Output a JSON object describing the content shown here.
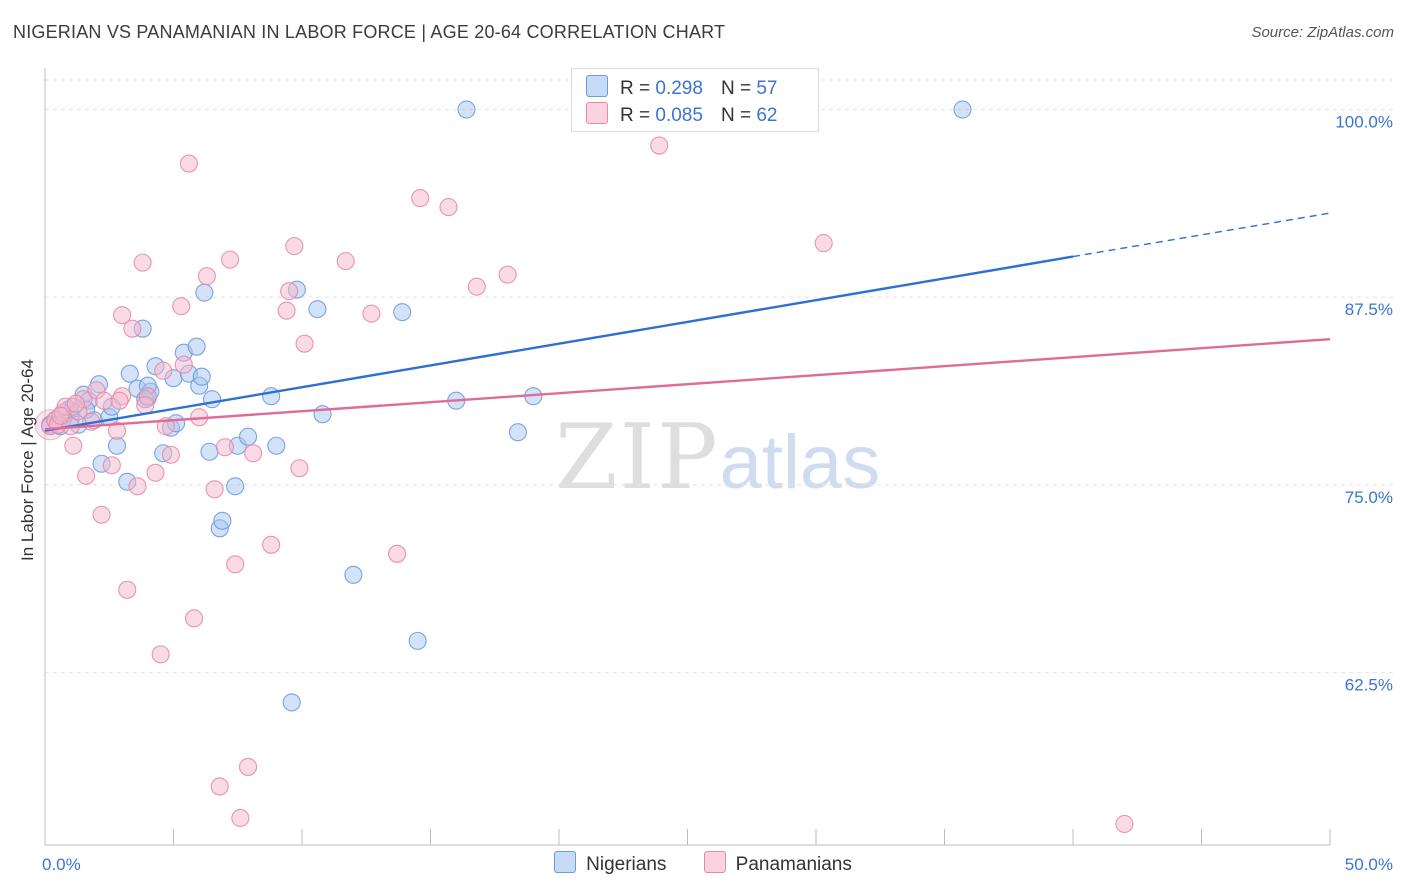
{
  "header": {
    "title": "NIGERIAN VS PANAMANIAN IN LABOR FORCE | AGE 20-64 CORRELATION CHART",
    "source": "Source: ZipAtlas.com"
  },
  "watermark": {
    "zip": "ZIP",
    "atlas": "atlas"
  },
  "stats": [
    {
      "r_label": "R =",
      "r_value": "0.298",
      "n_label": "N =",
      "n_value": "57",
      "color": "#a8c6f0"
    },
    {
      "r_label": "R =",
      "r_value": "0.085",
      "n_label": "N =",
      "n_value": "62",
      "color": "#f6b7cb"
    }
  ],
  "legend": [
    {
      "label": "Nigerians",
      "color": "#a8c6f0"
    },
    {
      "label": "Panamanians",
      "color": "#f6b7cb"
    }
  ],
  "colors": {
    "nigerian_fill": "#a8c6f0",
    "nigerian_stroke": "#6d9be0",
    "nigerian_line": "#2e6fd0",
    "panamanian_fill": "#f6b7cb",
    "panamanian_stroke": "#e58aab",
    "panamanian_line": "#e06b98",
    "tick_label": "#3a74d4",
    "grid": "#e2e2e2",
    "axis": "#bdbdbd"
  },
  "chart_data": {
    "type": "scatter",
    "title": "NIGERIAN VS PANAMANIAN IN LABOR FORCE | AGE 20-64 CORRELATION CHART",
    "xlabel": "",
    "ylabel": "In Labor Force | Age 20-64",
    "xlim": [
      0,
      50
    ],
    "ylim": [
      51,
      102.5
    ],
    "x_tick_labels": [
      "0.0%",
      "50.0%"
    ],
    "y_ticks": [
      62.5,
      75.0,
      87.5,
      100.0
    ],
    "y_tick_labels": [
      "62.5%",
      "75.0%",
      "87.5%",
      "100.0%"
    ],
    "grid": true,
    "legend_position": "bottom",
    "series": [
      {
        "name": "Nigerians",
        "color": "#a8c6f0",
        "r": 0.298,
        "n": 57,
        "trend": {
          "x": [
            0,
            40,
            50
          ],
          "y": [
            78.6,
            90.2,
            93.1
          ],
          "solid_until": 40
        },
        "points": [
          [
            0.2,
            79.0
          ],
          [
            0.4,
            79.3
          ],
          [
            0.6,
            78.9
          ],
          [
            0.7,
            79.6
          ],
          [
            0.9,
            80.0
          ],
          [
            1.0,
            79.4
          ],
          [
            1.1,
            80.2
          ],
          [
            1.3,
            79.0
          ],
          [
            1.5,
            81.0
          ],
          [
            1.7,
            80.6
          ],
          [
            1.9,
            79.3
          ],
          [
            2.1,
            81.7
          ],
          [
            2.2,
            76.4
          ],
          [
            2.5,
            79.5
          ],
          [
            2.8,
            77.6
          ],
          [
            3.2,
            75.2
          ],
          [
            3.3,
            82.4
          ],
          [
            3.6,
            81.4
          ],
          [
            3.8,
            85.4
          ],
          [
            4.0,
            80.8
          ],
          [
            4.1,
            81.2
          ],
          [
            4.3,
            82.9
          ],
          [
            4.6,
            77.1
          ],
          [
            4.9,
            78.8
          ],
          [
            5.0,
            82.1
          ],
          [
            5.1,
            79.1
          ],
          [
            5.4,
            83.8
          ],
          [
            5.6,
            82.4
          ],
          [
            5.9,
            84.2
          ],
          [
            6.0,
            81.6
          ],
          [
            6.2,
            87.8
          ],
          [
            6.4,
            77.2
          ],
          [
            6.5,
            80.7
          ],
          [
            6.8,
            72.1
          ],
          [
            6.9,
            72.6
          ],
          [
            7.4,
            74.9
          ],
          [
            7.5,
            77.6
          ],
          [
            7.9,
            78.2
          ],
          [
            8.8,
            80.9
          ],
          [
            9.0,
            77.6
          ],
          [
            9.6,
            60.5
          ],
          [
            9.8,
            88.0
          ],
          [
            10.6,
            86.7
          ],
          [
            10.8,
            79.7
          ],
          [
            12.0,
            69.0
          ],
          [
            13.9,
            86.5
          ],
          [
            14.5,
            64.6
          ],
          [
            16.0,
            80.6
          ],
          [
            16.4,
            100.0
          ],
          [
            18.4,
            78.5
          ],
          [
            19.0,
            80.9
          ],
          [
            35.7,
            100.0
          ],
          [
            6.1,
            82.2
          ],
          [
            4.0,
            81.6
          ],
          [
            3.9,
            80.7
          ],
          [
            2.6,
            80.2
          ],
          [
            1.6,
            80.0
          ]
        ]
      },
      {
        "name": "Panamanians",
        "color": "#f6b7cb",
        "r": 0.085,
        "n": 62,
        "trend": {
          "x": [
            0,
            50
          ],
          "y": [
            78.7,
            84.7
          ],
          "solid_until": 50
        },
        "points": [
          [
            0.2,
            78.9
          ],
          [
            0.4,
            79.3
          ],
          [
            0.5,
            79.0
          ],
          [
            0.7,
            79.8
          ],
          [
            0.8,
            80.2
          ],
          [
            1.0,
            78.9
          ],
          [
            1.1,
            77.6
          ],
          [
            1.3,
            79.9
          ],
          [
            1.5,
            80.7
          ],
          [
            1.6,
            75.6
          ],
          [
            1.8,
            79.2
          ],
          [
            2.0,
            81.3
          ],
          [
            2.2,
            73.0
          ],
          [
            2.3,
            80.6
          ],
          [
            2.6,
            76.3
          ],
          [
            2.8,
            78.6
          ],
          [
            3.0,
            80.9
          ],
          [
            3.0,
            86.3
          ],
          [
            3.2,
            68.0
          ],
          [
            3.4,
            85.4
          ],
          [
            3.6,
            74.9
          ],
          [
            3.8,
            89.8
          ],
          [
            4.0,
            80.9
          ],
          [
            4.3,
            75.8
          ],
          [
            4.5,
            63.7
          ],
          [
            4.6,
            82.6
          ],
          [
            4.7,
            78.9
          ],
          [
            4.9,
            77.0
          ],
          [
            5.3,
            86.9
          ],
          [
            5.4,
            83.0
          ],
          [
            5.6,
            96.4
          ],
          [
            5.8,
            66.1
          ],
          [
            6.0,
            79.5
          ],
          [
            6.3,
            88.9
          ],
          [
            6.6,
            74.7
          ],
          [
            6.8,
            54.9
          ],
          [
            7.0,
            77.5
          ],
          [
            7.2,
            90.0
          ],
          [
            7.4,
            69.7
          ],
          [
            7.6,
            52.8
          ],
          [
            7.9,
            56.2
          ],
          [
            8.1,
            77.1
          ],
          [
            8.8,
            71.0
          ],
          [
            9.4,
            86.6
          ],
          [
            9.5,
            87.9
          ],
          [
            9.7,
            90.9
          ],
          [
            9.9,
            76.1
          ],
          [
            10.1,
            84.4
          ],
          [
            11.7,
            89.9
          ],
          [
            12.7,
            86.4
          ],
          [
            13.7,
            70.4
          ],
          [
            14.6,
            94.1
          ],
          [
            15.7,
            93.5
          ],
          [
            16.8,
            88.2
          ],
          [
            18.0,
            89.0
          ],
          [
            23.9,
            97.6
          ],
          [
            30.3,
            91.1
          ],
          [
            42.0,
            52.4
          ],
          [
            1.2,
            80.4
          ],
          [
            2.9,
            80.6
          ],
          [
            3.9,
            80.3
          ],
          [
            0.6,
            79.6
          ]
        ]
      }
    ]
  }
}
